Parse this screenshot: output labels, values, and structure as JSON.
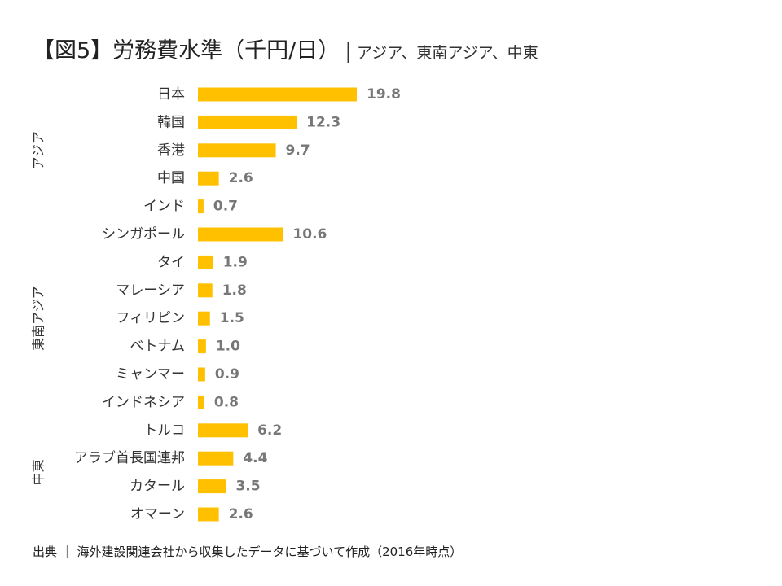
{
  "title": {
    "main": "【図5】労務費水準（千円/日）",
    "separator": "|",
    "subtitle": "アジア、東南アジア、中東"
  },
  "footer": {
    "text": "出典 ｜ 海外建設関連会社から収集したデータに基づいて作成（2016年時点）"
  },
  "colors": {
    "bar": "#FFC000",
    "value_label": "#777777",
    "text": "#333333"
  },
  "chart_data": {
    "type": "bar",
    "orientation": "horizontal",
    "categories": [
      "日本",
      "韓国",
      "香港",
      "中国",
      "インド",
      "シンガポール",
      "タイ",
      "マレーシア",
      "フィリピン",
      "ベトナム",
      "ミャンマー",
      "インドネシア",
      "トルコ",
      "アラブ首長国連邦",
      "カタール",
      "オマーン"
    ],
    "values": [
      19.8,
      12.3,
      9.7,
      2.6,
      0.7,
      10.6,
      1.9,
      1.8,
      1.5,
      1.0,
      0.9,
      0.8,
      6.2,
      4.4,
      3.5,
      2.6
    ],
    "value_labels": [
      "19.8",
      "12.3",
      "9.7",
      "2.6",
      "0.7",
      "10.6",
      "1.9",
      "1.8",
      "1.5",
      "1.0",
      "0.9",
      "0.8",
      "6.2",
      "4.4",
      "3.5",
      "2.6"
    ],
    "groups": [
      {
        "name": "アジア",
        "from": 0,
        "to": 4
      },
      {
        "name": "東南アジア",
        "from": 5,
        "to": 11
      },
      {
        "name": "中東",
        "from": 12,
        "to": 15
      }
    ],
    "title": "【図5】労務費水準（千円/日）",
    "xlim": [
      0,
      20
    ],
    "grid": false,
    "legend": false
  }
}
